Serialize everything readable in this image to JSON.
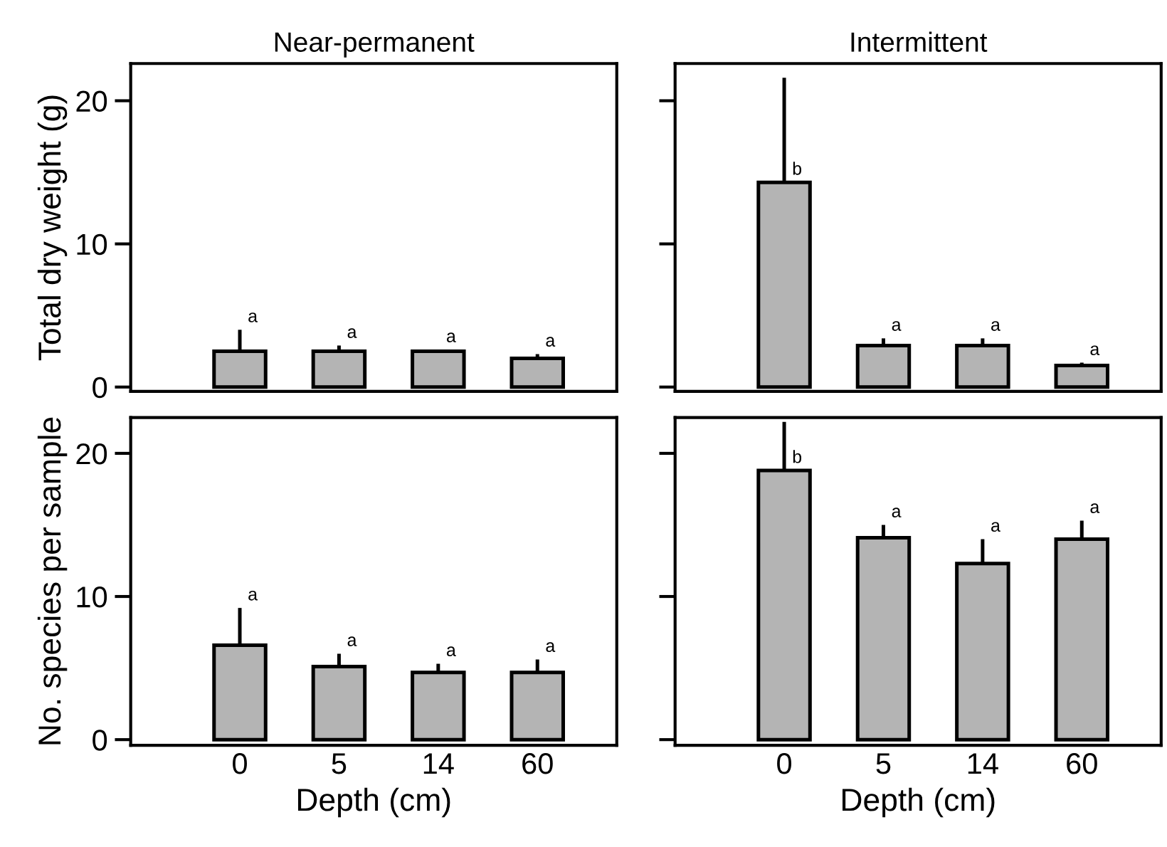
{
  "chart_data": [
    {
      "type": "bar",
      "title": "Near-permanent",
      "ylabel": "Total dry weight (g)",
      "categories": [
        "0",
        "5",
        "14",
        "60"
      ],
      "values": [
        2.5,
        2.5,
        2.5,
        2.0
      ],
      "errors": [
        1.5,
        0.4,
        0.1,
        0.3
      ],
      "color": "#b4b4b4",
      "ylim": [
        -0.3,
        22.6
      ],
      "yticks": [
        0,
        10,
        20
      ],
      "tick_labels": "y",
      "annotations": [
        {
          "text": "a",
          "x": "0",
          "y": 4.0
        },
        {
          "text": "a",
          "x": "5",
          "y": 2.9
        },
        {
          "text": "a",
          "x": "14",
          "y": 2.6
        },
        {
          "text": "a",
          "x": "60",
          "y": 2.3
        }
      ]
    },
    {
      "type": "bar",
      "title": "Intermittent",
      "categories": [
        "0",
        "5",
        "14",
        "60"
      ],
      "values": [
        14.3,
        2.9,
        2.9,
        1.5
      ],
      "errors": [
        7.3,
        0.5,
        0.5,
        0.2
      ],
      "color": "#b4b4b4",
      "ylim": [
        -0.3,
        22.6
      ],
      "yticks": [
        {
          "value": 0,
          "label": null
        },
        {
          "value": 10,
          "label": null
        },
        {
          "value": 20,
          "label": null
        }
      ],
      "tick_labels": false,
      "annotations": [
        {
          "text": "b",
          "x": "0",
          "y": 14.3
        },
        {
          "text": "a",
          "x": "5",
          "y": 3.4
        },
        {
          "text": "a",
          "x": "14",
          "y": 3.4
        },
        {
          "text": "a",
          "x": "60",
          "y": 1.7
        }
      ]
    },
    {
      "type": "bar",
      "ylabel": "No. species per sample",
      "xlabel": "Depth (cm)",
      "categories": [
        "0",
        "5",
        "14",
        "60"
      ],
      "values": [
        6.6,
        5.1,
        4.7,
        4.7
      ],
      "errors": [
        2.6,
        0.9,
        0.6,
        0.9
      ],
      "color": "#b4b4b4",
      "ylim": [
        -0.4,
        22.5
      ],
      "yticks": [
        0,
        10,
        20
      ],
      "annotations": [
        {
          "text": "a",
          "x": "0",
          "y": 9.2
        },
        {
          "text": "a",
          "x": "5",
          "y": 6.0
        },
        {
          "text": "a",
          "x": "14",
          "y": 5.3
        },
        {
          "text": "a",
          "x": "60",
          "y": 5.6
        }
      ]
    },
    {
      "type": "bar",
      "xlabel": "Depth (cm)",
      "categories": [
        "0",
        "5",
        "14",
        "60"
      ],
      "values": [
        18.8,
        14.1,
        12.3,
        14.0
      ],
      "errors": [
        3.4,
        0.9,
        1.7,
        1.3
      ],
      "color": "#b4b4b4",
      "ylim": [
        -0.4,
        22.5
      ],
      "yticks": [
        {
          "value": 0,
          "label": null
        },
        {
          "value": 10,
          "label": null
        },
        {
          "value": 20,
          "label": null
        }
      ],
      "tick_labels": "x",
      "annotations": [
        {
          "text": "b",
          "x": "0",
          "y": 18.8
        },
        {
          "text": "a",
          "x": "5",
          "y": 15.0
        },
        {
          "text": "a",
          "x": "14",
          "y": 14.0
        },
        {
          "text": "a",
          "x": "60",
          "y": 15.3
        }
      ]
    }
  ]
}
